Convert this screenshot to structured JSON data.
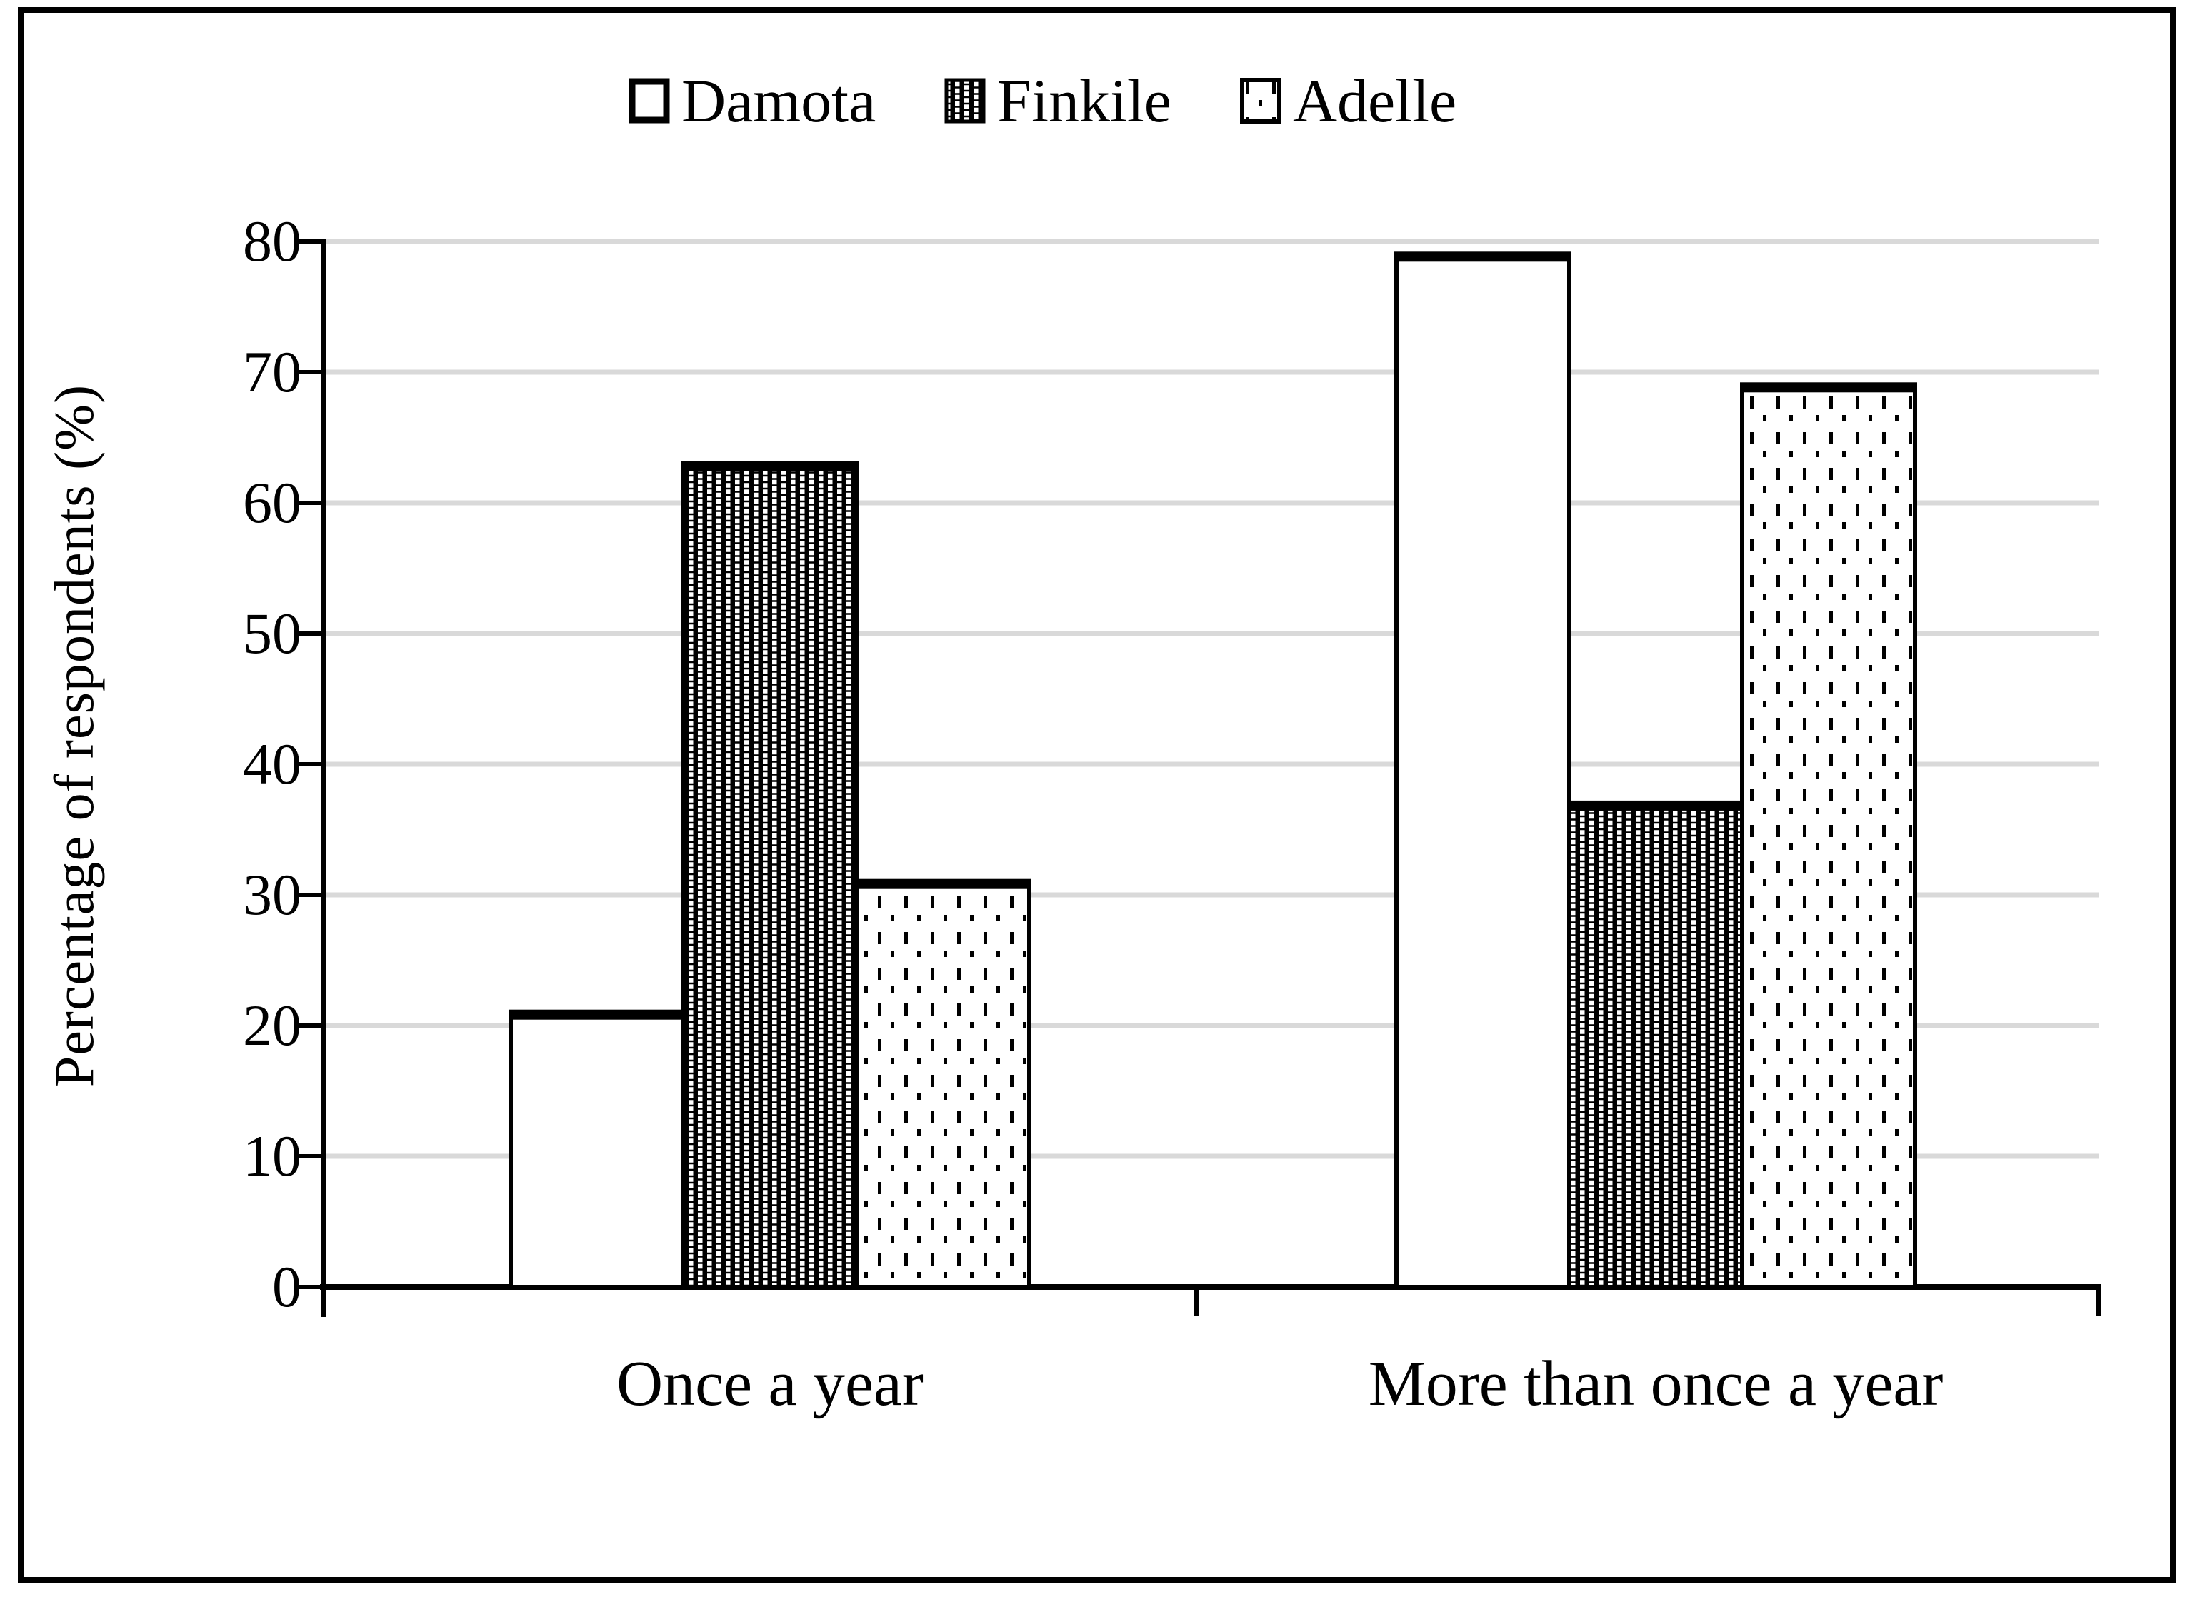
{
  "figure": {
    "background_color": "#ffffff",
    "border_color": "#000000"
  },
  "legend": {
    "position": "top",
    "items": [
      {
        "label": "Damota",
        "swatch": "white-empty-square"
      },
      {
        "label": "Finkile",
        "swatch": "black-with-white-dot-grid"
      },
      {
        "label": "Adelle",
        "swatch": "white-with-black-dot-grid"
      }
    ]
  },
  "chart_data": {
    "type": "bar",
    "title": "",
    "categories": [
      "Once a year",
      "More than once a year"
    ],
    "series": [
      {
        "name": "Damota",
        "values": [
          21,
          79
        ],
        "fill_pattern": "plain-white-black-outline"
      },
      {
        "name": "Finkile",
        "values": [
          63,
          37
        ],
        "fill_pattern": "dense-white-dots-on-black"
      },
      {
        "name": "Adelle",
        "values": [
          31,
          69
        ],
        "fill_pattern": "sparse-black-dashes-on-white"
      }
    ],
    "xlabel": "",
    "ylabel": "Percentage of respondents  (%)",
    "ylim": [
      0,
      80
    ],
    "yticks": [
      0,
      10,
      20,
      30,
      40,
      50,
      60,
      70,
      80
    ],
    "grid": "horizontal",
    "gridline_color": "#d9d9d9",
    "axis_color": "#000000",
    "bar_cap_color": "#000000",
    "legend_position": "top-center"
  }
}
